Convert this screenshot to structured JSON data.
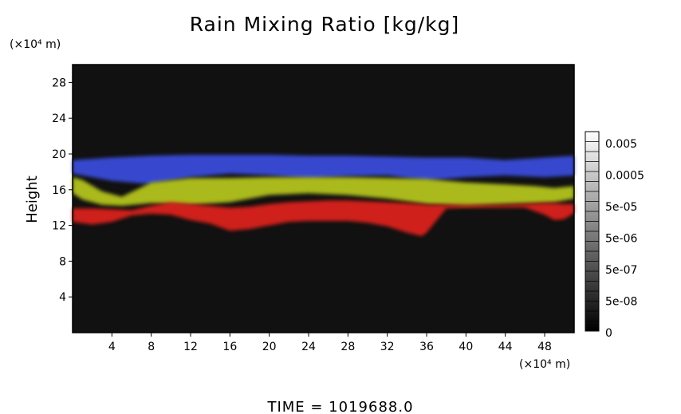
{
  "chart_data": {
    "type": "heatmap",
    "title": "Rain Mixing Ratio [kg/kg]",
    "xlabel": "",
    "x_unit": "(×10⁴ m)",
    "ylabel": "Height",
    "y_unit": "(×10⁴ m)",
    "xlim": [
      0,
      51
    ],
    "ylim": [
      0,
      30
    ],
    "x_ticks": [
      4,
      8,
      12,
      16,
      20,
      24,
      28,
      32,
      36,
      40,
      44,
      48
    ],
    "y_ticks": [
      4,
      8,
      12,
      16,
      20,
      24,
      28
    ],
    "background": "#111111",
    "bands": [
      {
        "name": "blue",
        "color": "#3a4ee0",
        "x": [
          0,
          4,
          8,
          12,
          16,
          20,
          24,
          28,
          32,
          36,
          40,
          44,
          48,
          51
        ],
        "top": [
          19.3,
          19.6,
          19.8,
          19.9,
          19.9,
          19.9,
          19.8,
          19.8,
          19.7,
          19.6,
          19.6,
          19.3,
          19.6,
          19.8
        ],
        "bottom": [
          17.8,
          17.0,
          16.6,
          17.4,
          17.8,
          17.6,
          17.2,
          17.5,
          17.6,
          17.0,
          17.4,
          17.6,
          17.4,
          17.6
        ]
      },
      {
        "name": "green",
        "color": "#b8c81e",
        "x": [
          0,
          1,
          3,
          5,
          8,
          12,
          16,
          20,
          24,
          28,
          32,
          36,
          38,
          40,
          44,
          47,
          49,
          51
        ],
        "top": [
          17.4,
          17.1,
          15.8,
          15.2,
          16.8,
          17.3,
          17.3,
          17.4,
          17.4,
          17.4,
          17.3,
          17.2,
          17.0,
          16.8,
          16.6,
          16.4,
          16.2,
          16.4
        ],
        "bottom": [
          15.6,
          14.9,
          14.3,
          14.2,
          14.5,
          14.3,
          14.6,
          15.4,
          15.6,
          15.4,
          15.0,
          14.4,
          14.3,
          14.2,
          14.4,
          14.5,
          14.6,
          15.0
        ]
      },
      {
        "name": "red",
        "color": "#e0221a",
        "x": [
          0,
          2,
          4,
          6,
          8,
          10,
          12,
          14,
          16,
          18,
          20,
          22,
          24,
          26,
          28,
          30,
          32,
          34,
          35.5,
          36,
          38,
          40,
          44,
          46,
          48,
          49,
          50,
          51
        ],
        "top": [
          13.9,
          13.9,
          13.8,
          13.7,
          14.2,
          14.6,
          14.4,
          14.2,
          14.0,
          14.1,
          14.4,
          14.6,
          14.7,
          14.8,
          14.8,
          14.7,
          14.6,
          14.5,
          14.4,
          14.3,
          14.3,
          14.3,
          14.3,
          14.4,
          14.5,
          14.5,
          14.4,
          14.4
        ],
        "bottom": [
          12.4,
          12.1,
          12.4,
          13.1,
          13.3,
          13.2,
          12.6,
          12.2,
          11.4,
          11.6,
          12.0,
          12.4,
          12.5,
          12.5,
          12.5,
          12.3,
          11.9,
          11.2,
          10.8,
          11.2,
          13.9,
          14.0,
          14.0,
          14.0,
          13.2,
          12.6,
          12.7,
          13.4
        ]
      }
    ],
    "colorbar": {
      "labels": [
        "0.005",
        "0.0005",
        "5e-05",
        "5e-06",
        "5e-07",
        "5e-08",
        "0"
      ],
      "gradient": [
        "#ffffff",
        "#000000"
      ]
    },
    "time_label": "TIME = 1019688.0"
  }
}
